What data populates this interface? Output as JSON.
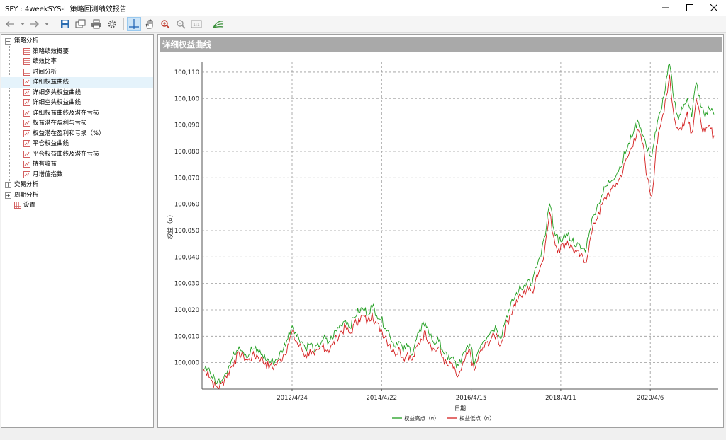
{
  "window": {
    "title": "SPY : 4weekSYS-L 策略回测绩效报告"
  },
  "tree": {
    "root1": "策略分析",
    "items": [
      "策略绩效概要",
      "绩效比率",
      "时间分析",
      "详细权益曲线",
      "详细多头权益曲线",
      "详细空头权益曲线",
      "详细权益曲线及潜在亏损",
      "权益潜在盈利与亏损",
      "权益潜在盈利和亏损（%）",
      "平仓权益曲线",
      "平仓权益曲线及潜在亏损",
      "持有收益",
      "月增值指数"
    ],
    "root2": "交易分析",
    "root3": "周期分析",
    "settings": "设置"
  },
  "panel": {
    "title": "详细权益曲线"
  },
  "chart_data": {
    "type": "line",
    "title": "",
    "xlabel": "日期",
    "ylabel": "权益（¤）",
    "x_tick_labels": [
      "2012/4/24",
      "2014/4/22",
      "2016/4/15",
      "2018/4/11",
      "2020/4/6"
    ],
    "y_tick_labels": [
      "100,000",
      "100,010",
      "100,020",
      "100,030",
      "100,040",
      "100,050",
      "100,060",
      "100,070",
      "100,080",
      "100,090",
      "100,100",
      "100,110"
    ],
    "ylim": [
      99990,
      100114
    ],
    "x_range": [
      "2010/7",
      "2021/12"
    ],
    "grid": true,
    "legend_position": "bottom",
    "series": [
      {
        "name": "权益高点（¤）",
        "color": "#1f9e1f",
        "values": [
          99997.5,
          99998,
          99994,
          99992,
          99993,
          99996,
          99999,
          100003,
          100006,
          100004,
          100002,
          100005,
          100004,
          100003,
          100001,
          100000,
          100000,
          100002,
          100005,
          100009,
          100014,
          100010,
          100008,
          100005,
          100007,
          100004,
          100006,
          100009,
          100007,
          100009,
          100012,
          100014,
          100016,
          100013,
          100017,
          100019,
          100020,
          100018,
          100021,
          100018,
          100016,
          100013,
          100010,
          100006,
          100008,
          100004,
          100006,
          100003,
          100009,
          100012,
          100015,
          100010,
          100007,
          100008,
          100004,
          100001,
          100002,
          99998,
          100000,
          100004,
          100007,
          99999,
          100005,
          100008,
          100010,
          100012,
          100013,
          100009,
          100016,
          100020,
          100024,
          100027,
          100028,
          100031,
          100029,
          100036,
          100040,
          100048,
          100060,
          100050,
          100045,
          100047,
          100048,
          100046,
          100044,
          100043,
          100042,
          100050,
          100056,
          100060,
          100064,
          100067,
          100069,
          100071,
          100074,
          100079,
          100083,
          100088,
          100091,
          100086,
          100080,
          100078,
          100088,
          100095,
          100103,
          100113,
          100099,
          100092,
          100096,
          100100,
          100093,
          100106,
          100097,
          100093,
          100096,
          100094
        ]
      },
      {
        "name": "权益低点（¤）",
        "color": "#d41f1f",
        "values": [
          99997.5,
          99997,
          99993,
          99991,
          99992,
          99995,
          99998,
          100001,
          100004,
          100003,
          100001,
          100003,
          100003,
          100002,
          100000,
          99999,
          99999,
          100001,
          100003,
          100007,
          100012,
          100008,
          100006,
          100003,
          100005,
          100003,
          100005,
          100007,
          100005,
          100007,
          100010,
          100012,
          100014,
          100011,
          100015,
          100017,
          100018,
          100016,
          100019,
          100015,
          100013,
          100010,
          100007,
          100004,
          100006,
          100002,
          100004,
          100001,
          100006,
          100009,
          100012,
          100008,
          100005,
          100006,
          100002,
          99999,
          100000,
          99995,
          99997,
          100002,
          100005,
          99997,
          100003,
          100006,
          100008,
          100010,
          100011,
          100007,
          100014,
          100018,
          100022,
          100025,
          100026,
          100029,
          100027,
          100033,
          100037,
          100045,
          100057,
          100047,
          100043,
          100045,
          100046,
          100044,
          100042,
          100041,
          100038,
          100046,
          100053,
          100057,
          100061,
          100064,
          100066,
          100068,
          100071,
          100076,
          100080,
          100085,
          100088,
          100083,
          100070,
          100063,
          100082,
          100090,
          100099,
          100109,
          100093,
          100088,
          100091,
          100095,
          100087,
          100100,
          100092,
          100087,
          100090,
          100086
        ]
      }
    ]
  },
  "icons": {
    "back": "back-arrow-icon",
    "forward": "forward-arrow-icon",
    "save": "save-icon",
    "copy": "copy-icon",
    "print": "print-icon",
    "settings": "gear-icon",
    "crosshair": "crosshair-icon",
    "hand": "hand-icon",
    "zoom_in": "zoom-in-icon",
    "zoom_out": "zoom-out-icon",
    "zoom_fit": "zoom-fit-icon",
    "chart": "chart-icon"
  }
}
